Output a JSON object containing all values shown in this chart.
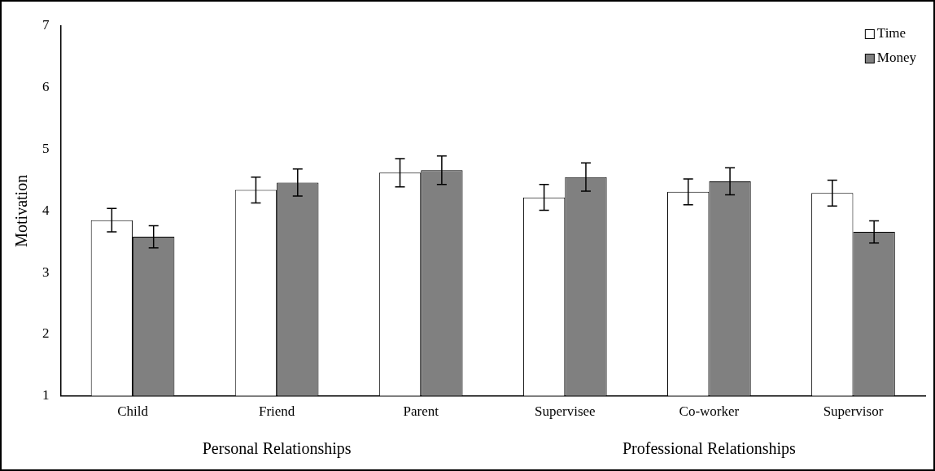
{
  "chart_data": {
    "type": "bar",
    "ylabel": "Motivation",
    "categories": [
      "Child",
      "Friend",
      "Parent",
      "Supervisee",
      "Co-worker",
      "Supervisor"
    ],
    "series": [
      {
        "name": "Time",
        "color": "#ffffff",
        "values": [
          3.85,
          4.34,
          4.62,
          4.22,
          4.31,
          4.29
        ],
        "errors": [
          0.19,
          0.21,
          0.23,
          0.21,
          0.21,
          0.21
        ]
      },
      {
        "name": "Money",
        "color": "#808080",
        "values": [
          3.58,
          4.46,
          4.66,
          4.55,
          4.48,
          3.66
        ],
        "errors": [
          0.18,
          0.22,
          0.23,
          0.23,
          0.22,
          0.18
        ]
      }
    ],
    "ylim": [
      1,
      7
    ],
    "yticks": [
      1,
      2,
      3,
      4,
      5,
      6,
      7
    ],
    "grid": false,
    "legend": "top right",
    "annotations": [
      "Personal Relationships",
      "Professional Relationships"
    ]
  }
}
